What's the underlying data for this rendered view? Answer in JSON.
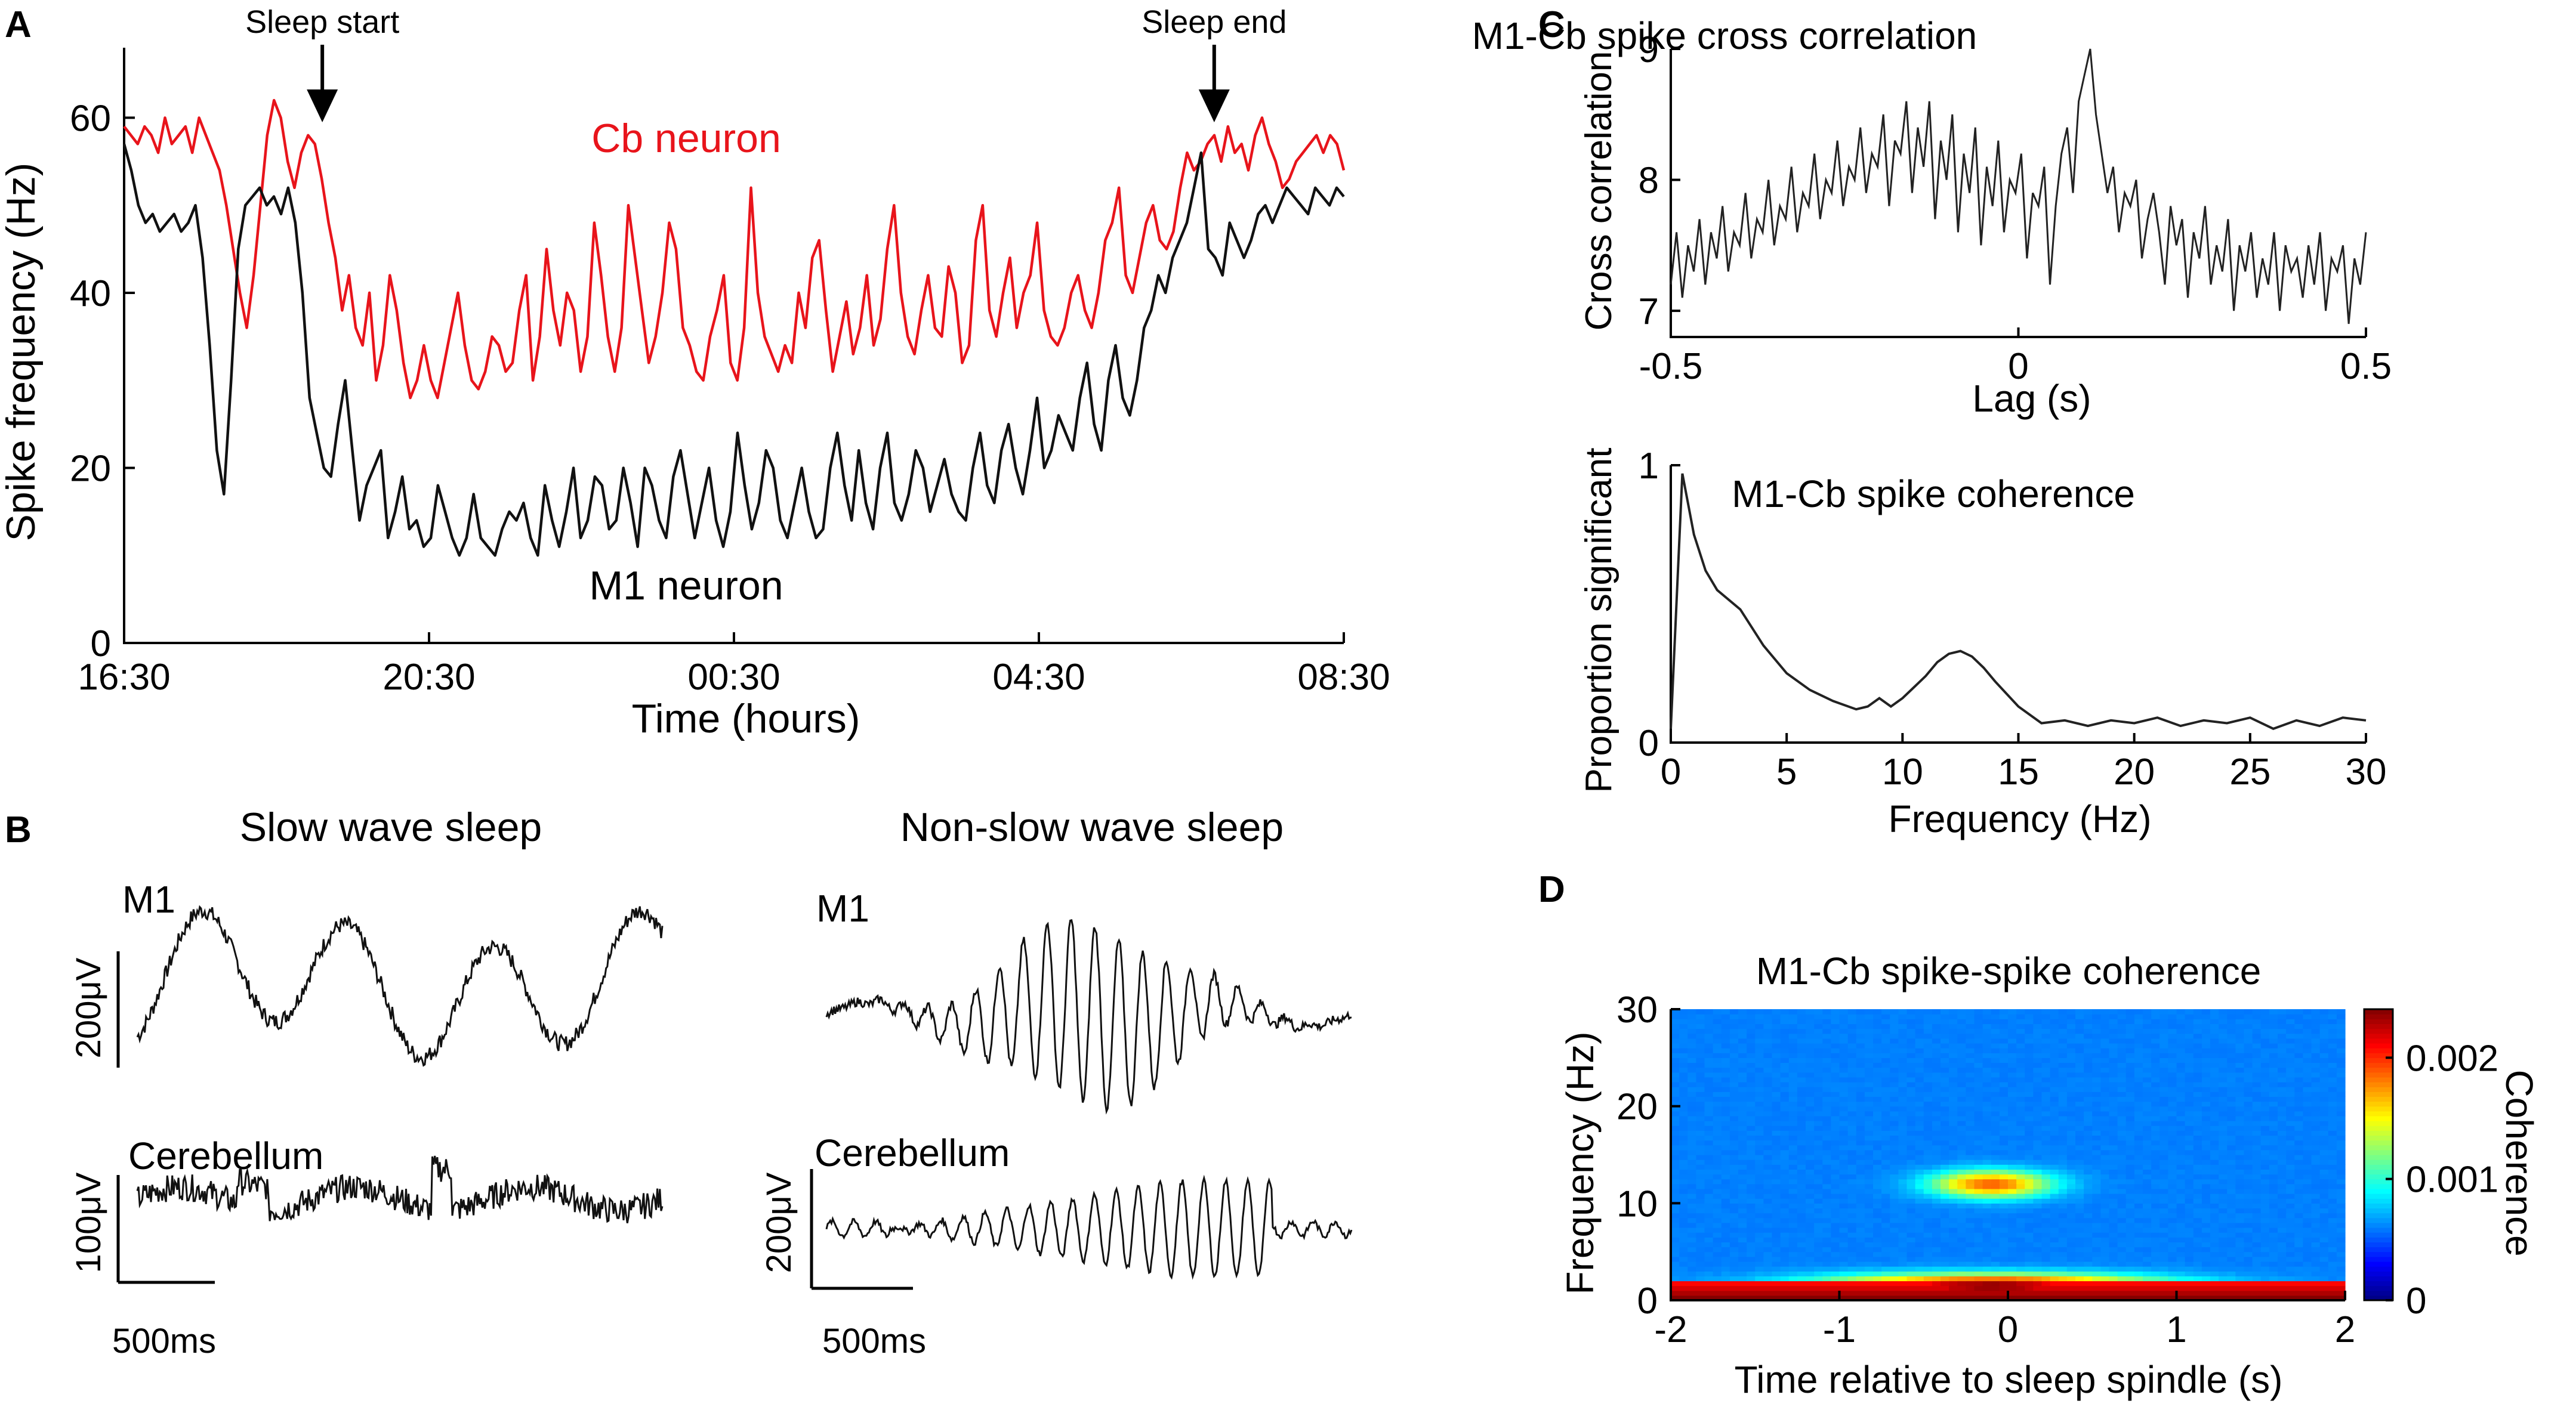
{
  "panel_labels": {
    "a": "A",
    "b": "B",
    "c": "C",
    "d": "D"
  },
  "chart_data": [
    {
      "id": "A",
      "type": "line",
      "ylabel": "Spike frequency (Hz)",
      "xlabel": "Time (hours)",
      "x_ticks": [
        "16:30",
        "20:30",
        "00:30",
        "04:30",
        "08:30"
      ],
      "y_ticks": [
        "0",
        "20",
        "40",
        "60"
      ],
      "ylim": [
        0,
        68
      ],
      "xlim": [
        0,
        16
      ],
      "annotations": {
        "start": "Sleep start",
        "end": "Sleep end"
      },
      "annotation_x": {
        "start": 2.6,
        "end": 14.3
      },
      "series": [
        {
          "name": "Cb neuron",
          "color": "#e8141b",
          "label": "Cb neuron",
          "values": [
            59,
            58,
            57,
            59,
            58,
            56,
            60,
            57,
            58,
            59,
            56,
            60,
            58,
            56,
            54,
            50,
            45,
            40,
            36,
            42,
            50,
            58,
            62,
            60,
            55,
            52,
            56,
            58,
            57,
            53,
            48,
            44,
            38,
            42,
            36,
            34,
            40,
            30,
            34,
            42,
            38,
            32,
            28,
            30,
            34,
            30,
            28,
            32,
            36,
            40,
            34,
            30,
            29,
            31,
            35,
            34,
            31,
            32,
            38,
            42,
            30,
            35,
            45,
            38,
            34,
            40,
            38,
            31,
            35,
            48,
            42,
            35,
            31,
            36,
            50,
            44,
            38,
            32,
            35,
            40,
            48,
            45,
            36,
            34,
            31,
            30,
            35,
            38,
            42,
            32,
            30,
            36,
            52,
            40,
            35,
            33,
            31,
            34,
            32,
            40,
            36,
            44,
            46,
            38,
            31,
            35,
            39,
            33,
            36,
            42,
            34,
            37,
            45,
            50,
            40,
            35,
            33,
            38,
            42,
            36,
            35,
            43,
            40,
            32,
            34,
            46,
            50,
            38,
            35,
            40,
            44,
            36,
            40,
            42,
            48,
            38,
            35,
            34,
            36,
            40,
            42,
            38,
            36,
            40,
            46,
            48,
            52,
            42,
            40,
            44,
            48,
            50,
            46,
            45,
            47,
            52,
            56,
            54,
            55,
            57,
            58,
            55,
            59,
            56,
            57,
            54,
            58,
            60,
            57,
            55,
            52,
            53,
            55,
            56,
            57,
            58,
            56,
            58,
            57,
            54
          ]
        },
        {
          "name": "M1 neuron",
          "color": "#111111",
          "label": "M1 neuron",
          "values": [
            57,
            54,
            50,
            48,
            49,
            47,
            48,
            49,
            47,
            48,
            50,
            44,
            34,
            22,
            17,
            30,
            45,
            50,
            51,
            52,
            50,
            51,
            49,
            52,
            48,
            40,
            28,
            24,
            20,
            19,
            25,
            30,
            22,
            14,
            18,
            20,
            22,
            12,
            15,
            19,
            13,
            14,
            11,
            12,
            18,
            15,
            12,
            10,
            12,
            17,
            12,
            11,
            10,
            13,
            15,
            14,
            16,
            12,
            10,
            18,
            14,
            11,
            15,
            20,
            12,
            14,
            19,
            18,
            13,
            14,
            20,
            16,
            11,
            20,
            18,
            14,
            12,
            19,
            22,
            17,
            12,
            16,
            20,
            14,
            11,
            15,
            24,
            18,
            13,
            16,
            22,
            20,
            14,
            12,
            16,
            20,
            15,
            12,
            13,
            20,
            24,
            18,
            14,
            22,
            16,
            13,
            20,
            24,
            16,
            14,
            17,
            22,
            20,
            15,
            18,
            21,
            17,
            15,
            14,
            20,
            24,
            18,
            16,
            22,
            25,
            20,
            17,
            22,
            28,
            20,
            22,
            26,
            24,
            22,
            28,
            32,
            25,
            22,
            30,
            34,
            28,
            26,
            30,
            36,
            38,
            42,
            40,
            44,
            46,
            48,
            52,
            56,
            45,
            44,
            42,
            48,
            46,
            44,
            46,
            49,
            50,
            48,
            50,
            52,
            51,
            50,
            49,
            52,
            51,
            50,
            52,
            51
          ]
        }
      ]
    },
    {
      "id": "C-top",
      "type": "line",
      "title": "M1-Cb spike cross correlation",
      "xlabel": "Lag (s)",
      "ylabel": "Cross correlation",
      "x_ticks": [
        "-0.5",
        "0",
        "0.5"
      ],
      "y_ticks": [
        "7",
        "8",
        "9"
      ],
      "xlim": [
        -0.5,
        0.5
      ],
      "ylim": [
        6.8,
        9.0
      ],
      "values": [
        7.2,
        7.6,
        7.1,
        7.5,
        7.3,
        7.7,
        7.2,
        7.6,
        7.4,
        7.8,
        7.3,
        7.6,
        7.5,
        7.9,
        7.4,
        7.7,
        7.6,
        8.0,
        7.5,
        7.8,
        7.7,
        8.1,
        7.6,
        7.9,
        7.8,
        8.2,
        7.7,
        8.0,
        7.9,
        8.3,
        7.8,
        8.1,
        8.0,
        8.4,
        7.9,
        8.2,
        8.1,
        8.5,
        7.8,
        8.3,
        8.2,
        8.6,
        7.9,
        8.4,
        8.1,
        8.6,
        7.7,
        8.3,
        8.0,
        8.5,
        7.6,
        8.2,
        7.9,
        8.4,
        7.5,
        8.1,
        7.8,
        8.3,
        7.6,
        8.0,
        7.9,
        8.2,
        7.4,
        7.9,
        7.8,
        8.1,
        7.2,
        7.8,
        8.2,
        8.4,
        7.9,
        8.6,
        8.8,
        9.0,
        8.5,
        8.2,
        7.9,
        8.1,
        7.6,
        7.9,
        7.8,
        8.0,
        7.4,
        7.7,
        7.9,
        7.6,
        7.2,
        7.8,
        7.5,
        7.7,
        7.1,
        7.6,
        7.4,
        7.8,
        7.2,
        7.5,
        7.3,
        7.7,
        7.0,
        7.5,
        7.3,
        7.6,
        7.1,
        7.4,
        7.2,
        7.6,
        7.0,
        7.5,
        7.3,
        7.4,
        7.1,
        7.5,
        7.2,
        7.6,
        7.0,
        7.4,
        7.3,
        7.5,
        6.9,
        7.4,
        7.2,
        7.6
      ]
    },
    {
      "id": "C-bottom",
      "type": "line",
      "title": "M1-Cb spike coherence",
      "xlabel": "Frequency (Hz)",
      "ylabel": "Proportion significant",
      "x_ticks": [
        "0",
        "5",
        "10",
        "15",
        "20",
        "25",
        "30"
      ],
      "y_ticks": [
        "0",
        "1"
      ],
      "xlim": [
        0,
        30
      ],
      "ylim": [
        0,
        1
      ],
      "x": [
        0,
        0.5,
        1,
        1.5,
        2,
        3,
        4,
        5,
        6,
        7,
        8,
        8.5,
        9,
        9.5,
        10,
        10.5,
        11,
        11.5,
        12,
        12.5,
        13,
        13.5,
        14,
        15,
        16,
        17,
        18,
        19,
        20,
        21,
        22,
        23,
        24,
        25,
        26,
        27,
        28,
        29,
        30
      ],
      "values": [
        0.05,
        0.97,
        0.75,
        0.62,
        0.55,
        0.48,
        0.35,
        0.25,
        0.19,
        0.15,
        0.12,
        0.13,
        0.16,
        0.13,
        0.16,
        0.2,
        0.24,
        0.29,
        0.32,
        0.33,
        0.31,
        0.27,
        0.22,
        0.13,
        0.07,
        0.08,
        0.06,
        0.08,
        0.07,
        0.09,
        0.06,
        0.08,
        0.07,
        0.09,
        0.05,
        0.08,
        0.06,
        0.09,
        0.08
      ]
    },
    {
      "id": "D",
      "type": "heatmap",
      "title": "M1-Cb spike-spike coherence",
      "xlabel": "Time relative to sleep spindle (s)",
      "ylabel": "Frequency (Hz)",
      "x_ticks": [
        "-2",
        "-1",
        "0",
        "1",
        "2"
      ],
      "y_ticks": [
        "0",
        "10",
        "20",
        "30"
      ],
      "xlim": [
        -2,
        2
      ],
      "ylim": [
        0,
        30
      ],
      "colorbar_label": "Coherence",
      "colorbar_ticks": [
        "0",
        "0.001",
        "0.002"
      ],
      "colorbar_range": [
        0,
        0.0024
      ],
      "baseline": 0.0006,
      "blobs": [
        {
          "t": -0.1,
          "f": 12,
          "peak": 0.0019,
          "st": 0.35,
          "sf": 1.4
        },
        {
          "t": -0.1,
          "f": 1.5,
          "peak": 0.0024,
          "st": 1.0,
          "sf": 1.2
        }
      ]
    }
  ],
  "panel_b": {
    "sws_title": "Slow wave sleep",
    "nsws_title": "Non-slow wave sleep",
    "m1_label": "M1",
    "cb_label": "Cerebellum",
    "sws_m1_scale": "200μV",
    "sws_cb_scale": "100μV",
    "nsws_m1_scale": "",
    "nsws_cb_scale": "200μV",
    "time_scale": "500ms"
  }
}
